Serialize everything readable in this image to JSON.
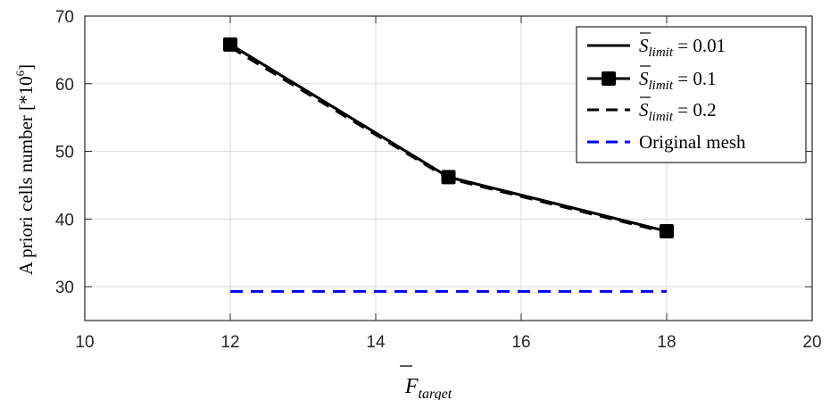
{
  "chart_data": {
    "type": "line",
    "xlabel": {
      "main": "F",
      "sub": "target"
    },
    "ylabel": {
      "main": "A priori cells number [*10",
      "sup": "6",
      "close": "]"
    },
    "xlim": [
      10,
      20
    ],
    "ylim": [
      25,
      70
    ],
    "xticks": [
      10,
      12,
      14,
      16,
      18,
      20
    ],
    "yticks": [
      30,
      40,
      50,
      60,
      70
    ],
    "grid": true,
    "legend_position": "top-right",
    "series": [
      {
        "name": {
          "main": "S",
          "sub": "limit",
          "rest": " = 0.01"
        },
        "x": [
          12,
          15,
          18
        ],
        "y": [
          65.8,
          46.2,
          38.2
        ],
        "color": "#000000",
        "style": "solid",
        "marker": "none"
      },
      {
        "name": {
          "main": "S",
          "sub": "limit",
          "rest": " = 0.1"
        },
        "x": [
          12,
          15,
          18
        ],
        "y": [
          65.8,
          46.2,
          38.2
        ],
        "color": "#000000",
        "style": "solid",
        "marker": "square"
      },
      {
        "name": {
          "main": "S",
          "sub": "limit",
          "rest": " = 0.2"
        },
        "x": [
          12,
          15,
          18
        ],
        "y": [
          65.4,
          46.0,
          38.0
        ],
        "color": "#000000",
        "style": "dashed",
        "marker": "none"
      },
      {
        "name": {
          "main": "Original mesh",
          "sub": "",
          "rest": ""
        },
        "x": [
          12,
          18
        ],
        "y": [
          29.3,
          29.3
        ],
        "color": "#0000ff",
        "style": "dashed",
        "marker": "none"
      }
    ]
  }
}
